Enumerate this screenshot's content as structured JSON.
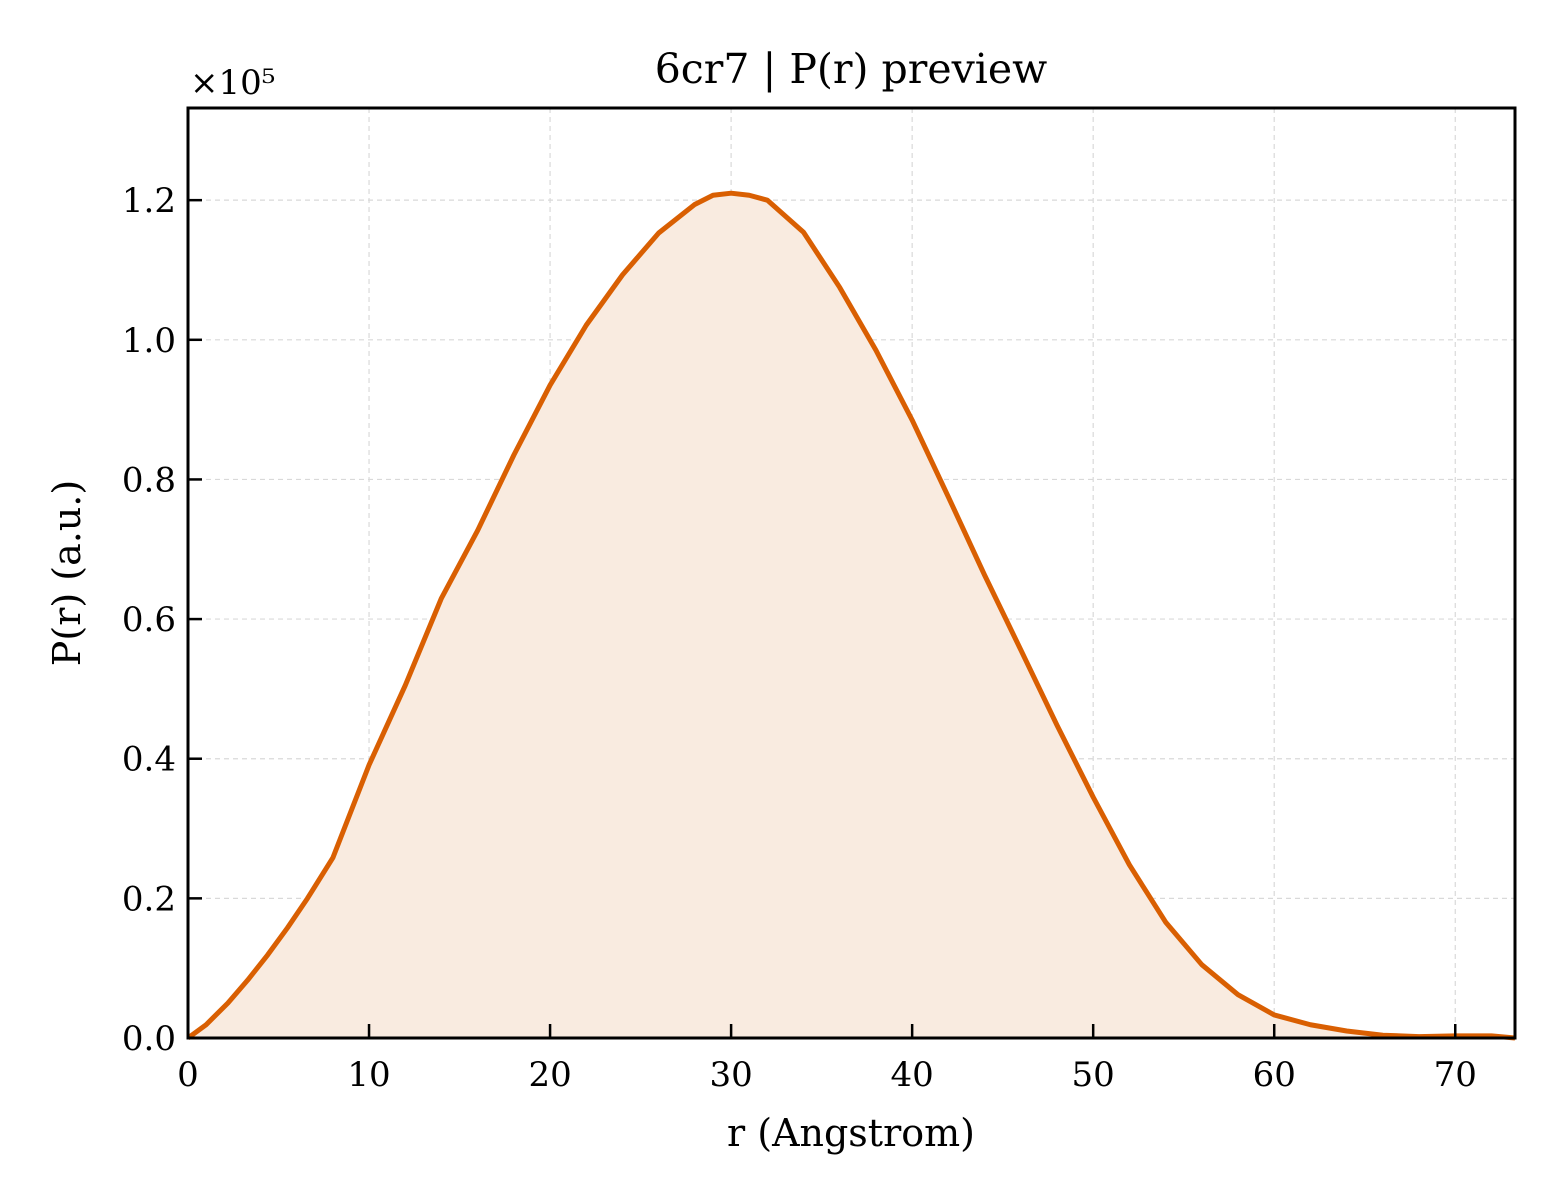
{
  "chart_data": {
    "type": "line",
    "title": "6cr7 | P(r) preview",
    "x_label": "r (Angstrom)",
    "y_label": "P(r) (a.u.)",
    "y_offset_label": "×10⁵",
    "x": [
      0,
      1,
      2.2,
      3.3,
      4.4,
      5.5,
      6.6,
      8,
      10,
      12,
      14,
      16,
      18,
      20,
      22,
      24,
      26,
      28,
      29,
      30,
      31,
      32,
      34,
      36,
      38,
      40,
      42,
      44,
      46,
      48,
      50,
      52,
      54,
      56,
      58,
      60,
      62,
      64,
      66,
      68,
      70,
      72,
      73.3
    ],
    "series": [
      {
        "name": "P(r)",
        "color": "#d95f02",
        "fill": "#f9ebe0",
        "values": [
          0,
          0.019,
          0.05,
          0.083,
          0.119,
          0.158,
          0.2,
          0.258,
          0.391,
          0.505,
          0.63,
          0.727,
          0.835,
          0.935,
          1.021,
          1.093,
          1.153,
          1.194,
          1.207,
          1.21,
          1.207,
          1.2,
          1.154,
          1.075,
          0.985,
          0.885,
          0.775,
          0.663,
          0.556,
          0.448,
          0.345,
          0.248,
          0.166,
          0.105,
          0.062,
          0.033,
          0.019,
          0.01,
          0.004,
          0.002,
          0.003,
          0.003,
          0
        ]
      }
    ],
    "xlim": [
      0,
      73.3
    ],
    "ylim": [
      0,
      1.332
    ],
    "xticks": [
      0,
      10,
      20,
      30,
      40,
      50,
      60,
      70
    ],
    "yticks": [
      {
        "value": 0,
        "label": "0.0"
      },
      0.2,
      0.4,
      0.6,
      0.8,
      {
        "value": 1,
        "label": "1.0"
      },
      1.2
    ],
    "grid": true
  }
}
